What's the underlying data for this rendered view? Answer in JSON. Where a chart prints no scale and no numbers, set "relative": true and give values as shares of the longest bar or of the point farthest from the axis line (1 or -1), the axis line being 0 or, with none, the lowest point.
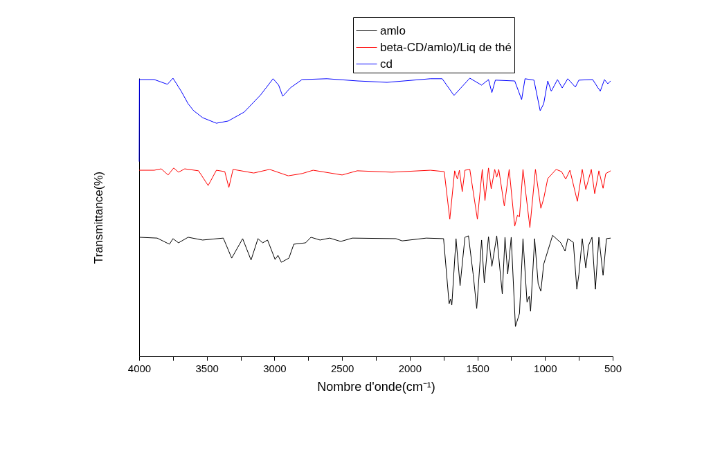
{
  "chart_data": {
    "type": "line",
    "relative": true,
    "xlabel": "Nombre d'onde(cm⁻¹)",
    "ylabel": "Transmittance(%)",
    "xlim": [
      4000,
      500
    ],
    "xticks": [
      4000,
      {
        "value": 3750,
        "label": null
      },
      3500,
      {
        "value": 3250,
        "label": null
      },
      3000,
      {
        "value": 2750,
        "label": null
      },
      2500,
      {
        "value": 2250,
        "label": null
      },
      2000,
      {
        "value": 1750,
        "label": null
      },
      1500,
      {
        "value": 1250,
        "label": null
      },
      1000,
      {
        "value": 750,
        "label": null
      },
      500
    ],
    "legend": "top right",
    "grid": false,
    "marker": "none",
    "line_style": "solid",
    "series": [
      {
        "name": "amlo",
        "color": "#000000",
        "x": [
          4000,
          3867,
          3776,
          3750,
          3709,
          3638,
          3531,
          3378,
          3316,
          3235,
          3173,
          3122,
          3087,
          3051,
          2995,
          2974,
          2949,
          2893,
          2857,
          2770,
          2730,
          2663,
          2592,
          2510,
          2424,
          2102,
          2056,
          1878,
          1750,
          1709,
          1699,
          1689,
          1658,
          1628,
          1592,
          1566,
          1531,
          1505,
          1469,
          1449,
          1418,
          1393,
          1357,
          1316,
          1296,
          1276,
          1250,
          1219,
          1189,
          1163,
          1133,
          1117,
          1107,
          1077,
          1051,
          1031,
          1010,
          944,
          883,
          852,
          832,
          791,
          765,
          750,
          725,
          699,
          679,
          653,
          628,
          602,
          571,
          546,
          515
        ],
        "values": [
          0.428,
          0.425,
          0.403,
          0.423,
          0.408,
          0.428,
          0.418,
          0.425,
          0.353,
          0.423,
          0.346,
          0.423,
          0.408,
          0.418,
          0.348,
          0.363,
          0.338,
          0.353,
          0.403,
          0.408,
          0.428,
          0.418,
          0.425,
          0.413,
          0.425,
          0.423,
          0.415,
          0.425,
          0.423,
          0.189,
          0.206,
          0.184,
          0.423,
          0.254,
          0.428,
          0.433,
          0.294,
          0.172,
          0.418,
          0.264,
          0.43,
          0.323,
          0.433,
          0.224,
          0.428,
          0.296,
          0.428,
          0.107,
          0.154,
          0.423,
          0.194,
          0.216,
          0.162,
          0.423,
          0.261,
          0.234,
          0.331,
          0.435,
          0.408,
          0.378,
          0.423,
          0.41,
          0.241,
          0.294,
          0.423,
          0.318,
          0.398,
          0.428,
          0.241,
          0.428,
          0.291,
          0.423,
          0.425
        ]
      },
      {
        "name": "beta-CD/amlo)/Liq de thé",
        "color": "#ff0000",
        "x": [
          4000,
          3888,
          3837,
          3786,
          3745,
          3709,
          3663,
          3561,
          3490,
          3429,
          3367,
          3337,
          3306,
          3153,
          3036,
          2898,
          2796,
          2714,
          2500,
          2388,
          2133,
          1847,
          1745,
          1704,
          1668,
          1648,
          1633,
          1612,
          1592,
          1556,
          1500,
          1464,
          1444,
          1418,
          1398,
          1372,
          1357,
          1342,
          1301,
          1265,
          1224,
          1204,
          1189,
          1163,
          1112,
          1071,
          1031,
          1010,
          980,
          918,
          878,
          847,
          816,
          761,
          725,
          699,
          658,
          633,
          602,
          571,
          551,
          515
        ],
        "values": [
          0.669,
          0.669,
          0.674,
          0.652,
          0.677,
          0.662,
          0.674,
          0.667,
          0.614,
          0.669,
          0.664,
          0.607,
          0.672,
          0.659,
          0.672,
          0.649,
          0.657,
          0.669,
          0.652,
          0.667,
          0.662,
          0.669,
          0.664,
          0.493,
          0.667,
          0.637,
          0.669,
          0.592,
          0.669,
          0.672,
          0.493,
          0.672,
          0.56,
          0.677,
          0.602,
          0.672,
          0.644,
          0.672,
          0.54,
          0.672,
          0.468,
          0.507,
          0.502,
          0.672,
          0.463,
          0.672,
          0.532,
          0.567,
          0.639,
          0.672,
          0.664,
          0.637,
          0.669,
          0.557,
          0.672,
          0.6,
          0.672,
          0.585,
          0.667,
          0.604,
          0.657,
          0.667
        ]
      },
      {
        "name": "cd",
        "color": "#0000ff",
        "x": [
          4000,
          3998,
          3888,
          3791,
          3750,
          3689,
          3638,
          3597,
          3531,
          3429,
          3342,
          3224,
          3102,
          3010,
          2969,
          2939,
          2883,
          2796,
          2612,
          2383,
          2168,
          1847,
          1760,
          1673,
          1556,
          1469,
          1418,
          1393,
          1367,
          1224,
          1173,
          1148,
          1082,
          1036,
          1010,
          980,
          954,
          908,
          873,
          832,
          776,
          750,
          648,
          592,
          561,
          536,
          515
        ],
        "values": [
          0.7,
          0.995,
          0.995,
          0.978,
          1.0,
          0.953,
          0.908,
          0.883,
          0.858,
          0.838,
          0.846,
          0.878,
          0.94,
          0.998,
          0.975,
          0.935,
          0.965,
          0.995,
          0.998,
          0.99,
          0.985,
          0.998,
          0.998,
          0.938,
          1.0,
          0.975,
          0.995,
          0.948,
          0.993,
          0.99,
          0.923,
          0.998,
          0.993,
          0.883,
          0.908,
          0.99,
          0.953,
          0.995,
          0.965,
          0.998,
          0.968,
          0.993,
          0.995,
          0.953,
          0.995,
          0.98,
          0.99
        ]
      }
    ]
  }
}
